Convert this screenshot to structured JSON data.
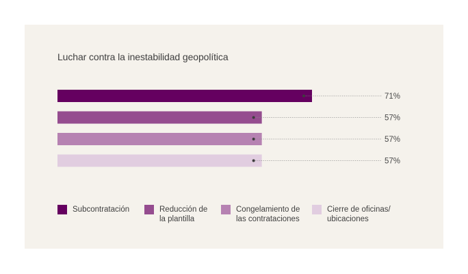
{
  "chart_data": {
    "type": "bar",
    "orientation": "horizontal",
    "title": "Luchar contra la inestabilidad geopolítica",
    "xlim": [
      0,
      100
    ],
    "categories": [
      "Subcontratación",
      "Reducción de la plantilla",
      "Congelamiento de las contrataciones",
      "Cierre de oficinas/ ubicaciones"
    ],
    "values": [
      71,
      57,
      57,
      57
    ],
    "value_labels": [
      "71%",
      "57%",
      "57%",
      "57%"
    ],
    "colors": [
      "#650060",
      "#954c8f",
      "#b682b2",
      "#e1cde0"
    ],
    "legend_position": "bottom"
  },
  "legend": [
    {
      "lines": [
        "Subcontratación"
      ],
      "color": "#650060"
    },
    {
      "lines": [
        "Reducción de",
        "la plantilla"
      ],
      "color": "#954c8f"
    },
    {
      "lines": [
        "Congelamiento de",
        "las contrataciones"
      ],
      "color": "#b682b2"
    },
    {
      "lines": [
        "Cierre de oficinas/",
        "ubicaciones"
      ],
      "color": "#e1cde0"
    }
  ]
}
